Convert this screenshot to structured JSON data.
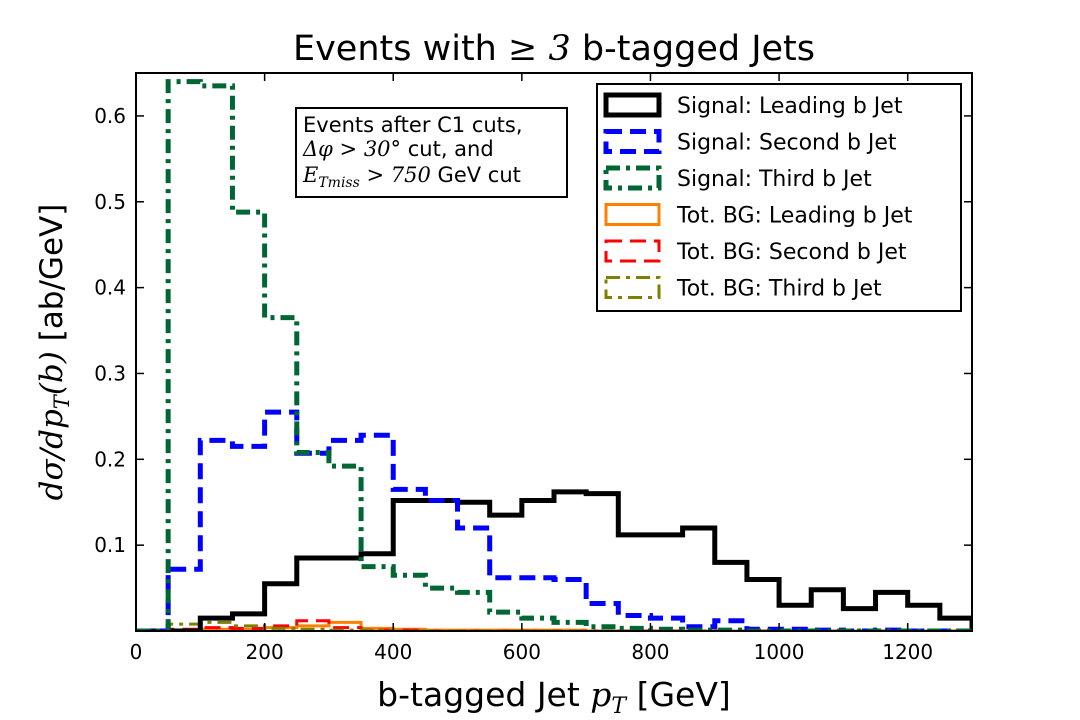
{
  "chart_data": {
    "type": "histogram-step",
    "title_prefix": "Events with",
    "title_math": "≥ 3",
    "title_suffix": "b-tagged Jets",
    "xlabel_prefix": "b-tagged Jet",
    "xlabel_math": "p",
    "xlabel_sub": "T",
    "xlabel_suffix": "[GeV]",
    "ylabel_math": "dσ/dp",
    "ylabel_sub": "T",
    "ylabel_math2": "(b)",
    "ylabel_units": "[ab/GeV]",
    "xlim": [
      0,
      1300
    ],
    "ylim": [
      0,
      0.65
    ],
    "xticks": [
      0,
      200,
      400,
      600,
      800,
      1000,
      1200
    ],
    "yticks": [
      0.1,
      0.2,
      0.3,
      0.4,
      0.5,
      0.6
    ],
    "annotation": {
      "line1": "Events after C1 cuts,",
      "line2_math": "Δφ > 30°",
      "line2_text": "cut, and",
      "line3_math": "E",
      "line3_sub": "Tmiss",
      "line3_math2": "> 750",
      "line3_text": "GeV cut"
    },
    "legend_position": "top-right",
    "bin_edges": [
      0,
      50,
      100,
      150,
      200,
      250,
      300,
      350,
      400,
      450,
      500,
      550,
      600,
      650,
      700,
      750,
      800,
      850,
      900,
      950,
      1000,
      1050,
      1100,
      1150,
      1200,
      1250,
      1300
    ],
    "series": [
      {
        "name": "Signal: Leading b Jet",
        "color": "#000000",
        "style": "solid",
        "values": [
          0,
          0,
          0.015,
          0.02,
          0.055,
          0.085,
          0.085,
          0.09,
          0.152,
          0.152,
          0.15,
          0.135,
          0.152,
          0.162,
          0.16,
          0.112,
          0.112,
          0.12,
          0.08,
          0.06,
          0.03,
          0.048,
          0.026,
          0.045,
          0.03,
          0.015
        ]
      },
      {
        "name": "Signal: Second b Jet",
        "color": "#0000ff",
        "style": "dashed",
        "values": [
          0,
          0.072,
          0.222,
          0.215,
          0.255,
          0.207,
          0.222,
          0.228,
          0.165,
          0.152,
          0.12,
          0.062,
          0.062,
          0.06,
          0.032,
          0.018,
          0.015,
          0.005,
          0.012,
          0.002,
          0.002,
          0.001,
          0,
          0.001,
          0,
          0
        ]
      },
      {
        "name": "Signal: Third b Jet",
        "color": "#006633",
        "style": "dashdot",
        "values": [
          0,
          0.64,
          0.635,
          0.488,
          0.365,
          0.208,
          0.192,
          0.075,
          0.065,
          0.05,
          0.045,
          0.022,
          0.015,
          0.01,
          0.005,
          0.003,
          0.002,
          0.001,
          0.001,
          0,
          0,
          0,
          0,
          0,
          0,
          0
        ]
      },
      {
        "name": "Tot. BG: Leading b Jet",
        "color": "#ff8000",
        "style": "solid",
        "values": [
          0,
          0.001,
          0.002,
          0.002,
          0.004,
          0.006,
          0.01,
          0.003,
          0.002,
          0.001,
          0.001,
          0.001,
          0.001,
          0.001,
          0,
          0,
          0,
          0,
          0,
          0,
          0,
          0,
          0,
          0,
          0,
          0
        ]
      },
      {
        "name": "Tot. BG: Second b Jet",
        "color": "#ff0000",
        "style": "dashed",
        "values": [
          0,
          0.002,
          0.004,
          0.003,
          0.006,
          0.012,
          0.004,
          0.001,
          0.001,
          0,
          0,
          0,
          0,
          0,
          0,
          0,
          0,
          0,
          0,
          0,
          0,
          0,
          0,
          0,
          0,
          0
        ]
      },
      {
        "name": "Tot. BG: Third b Jet",
        "color": "#808000",
        "style": "dashdot",
        "values": [
          0,
          0.008,
          0.01,
          0.006,
          0.003,
          0.002,
          0.001,
          0.001,
          0,
          0,
          0,
          0,
          0,
          0,
          0,
          0,
          0,
          0,
          0,
          0,
          0,
          0,
          0,
          0,
          0,
          0
        ]
      }
    ]
  }
}
